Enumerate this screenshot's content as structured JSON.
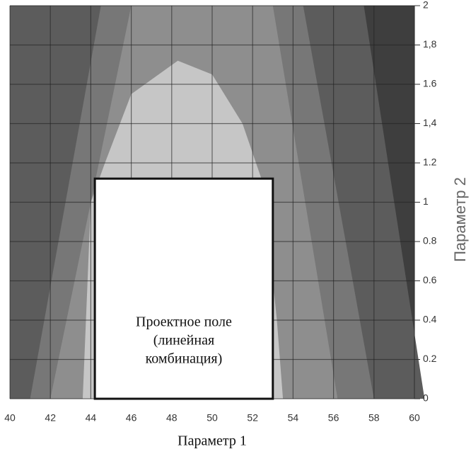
{
  "chart_data": {
    "type": "region",
    "x_label": "Параметр 1",
    "y_label": "Параметр 2",
    "xlim": [
      40,
      60
    ],
    "ylim": [
      0,
      2
    ],
    "xticks": [
      40,
      42,
      44,
      46,
      48,
      50,
      52,
      54,
      56,
      58,
      60
    ],
    "yticks": [
      0,
      0.2,
      0.4,
      0.6,
      0.8,
      1,
      {
        "value": 1.2,
        "label": "1.2"
      },
      {
        "value": 1.4,
        "label": "1,4"
      },
      1.6,
      {
        "value": 1.8,
        "label": "1,8"
      },
      2
    ],
    "grid": true,
    "background": "#3e3e3e",
    "regions": [
      {
        "color": "#5c5c5c",
        "x": [
          40,
          40,
          57.5,
          60.5
        ],
        "y": [
          0,
          2,
          2,
          0
        ]
      },
      {
        "color": "#777777",
        "x": [
          41,
          44.5,
          54.5,
          58
        ],
        "y": [
          0,
          2,
          2,
          0
        ]
      },
      {
        "color": "#8e8e8e",
        "x": [
          42,
          46,
          53,
          56.2
        ],
        "y": [
          0,
          2,
          2,
          0
        ]
      },
      {
        "color": "#c6c6c6",
        "x": [
          43.6,
          44,
          44.7,
          46,
          48.3,
          50,
          51.5,
          52.5,
          53.2,
          53.5
        ],
        "y": [
          0,
          1,
          1.2,
          1.55,
          1.72,
          1.65,
          1.4,
          1.1,
          0.4,
          0
        ]
      }
    ],
    "design_box": {
      "x": [
        44.2,
        53
      ],
      "y": [
        0,
        1.12
      ],
      "label": [
        "Проектное поле",
        "(линейная",
        "комбинация)"
      ]
    }
  }
}
